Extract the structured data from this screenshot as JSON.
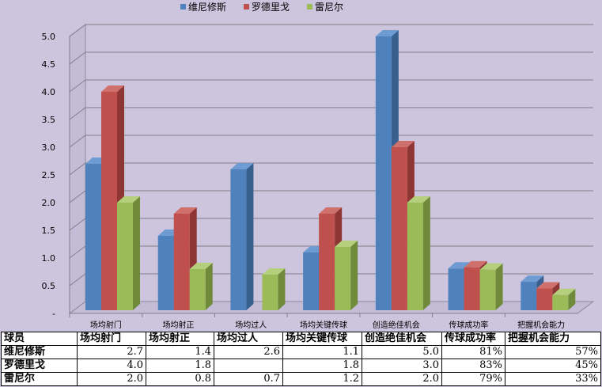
{
  "chart_data": {
    "type": "bar",
    "categories": [
      "场均射门",
      "场均射正",
      "场均过人",
      "场均关键传球",
      "创造绝佳机会",
      "传球成功率",
      "把握机会能力"
    ],
    "series": [
      {
        "name": "维尼修斯",
        "color": "#4f81bd",
        "side_color": "#37608e",
        "top_color": "#6f9bd3",
        "values": [
          2.7,
          1.4,
          2.6,
          1.1,
          5.0,
          0.81,
          0.57
        ]
      },
      {
        "name": "罗德里戈",
        "color": "#c0504d",
        "side_color": "#8e3633",
        "top_color": "#d0706d",
        "values": [
          4.0,
          1.8,
          null,
          1.8,
          3.0,
          0.83,
          0.45
        ]
      },
      {
        "name": "雷尼尔",
        "color": "#9bbb59",
        "side_color": "#6f8a3b",
        "top_color": "#b5d07c",
        "values": [
          2.0,
          0.8,
          0.7,
          1.2,
          2.0,
          0.79,
          0.33
        ]
      }
    ],
    "y_ticks": [
      "-",
      "0.5",
      "1.0",
      "1.5",
      "2.0",
      "2.5",
      "3.0",
      "3.5",
      "4.0",
      "4.5",
      "5.0"
    ],
    "ylim": [
      0,
      5.0
    ],
    "grid": true,
    "legend_position": "top"
  },
  "table": {
    "header": [
      "球员",
      "场均射门",
      "场均射正",
      "场均过人",
      "场均关键传球",
      "创造绝佳机会",
      "传球成功率",
      "把握机会能力"
    ],
    "rows": [
      {
        "player": "维尼修斯",
        "cells": [
          "2.7",
          "1.4",
          "2.6",
          "1.1",
          "5.0",
          "81%",
          "57%"
        ]
      },
      {
        "player": "罗德里戈",
        "cells": [
          "4.0",
          "1.8",
          "",
          "1.8",
          "3.0",
          "83%",
          "45%"
        ]
      },
      {
        "player": "雷尼尔",
        "cells": [
          "2.0",
          "0.8",
          "0.7",
          "1.2",
          "2.0",
          "79%",
          "33%"
        ]
      }
    ]
  }
}
